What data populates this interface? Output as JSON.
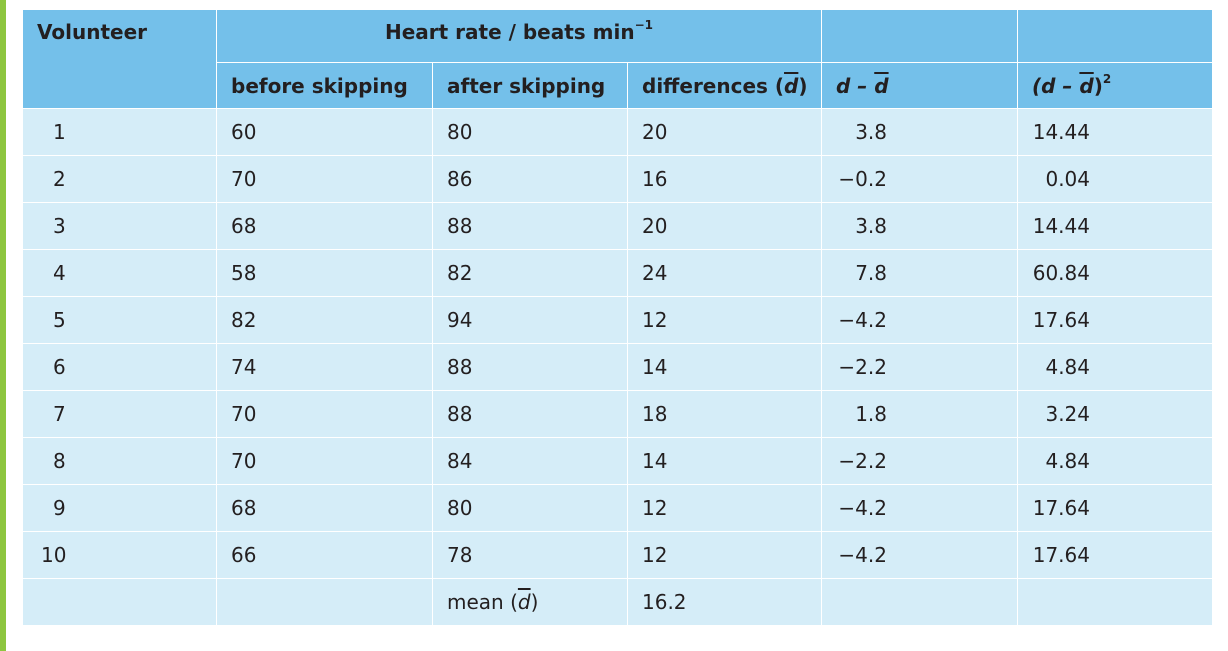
{
  "headers": {
    "volunteer": "Volunteer",
    "heart_rate_group": "Heart rate / beats min",
    "heart_rate_unit_sup": "−1",
    "before": "before skipping",
    "after": "after skipping",
    "differences_prefix": "differences (",
    "differences_symbol": "d",
    "differences_suffix": ")",
    "d_minus_prefix": "d – ",
    "d_minus_symbol": "d",
    "sq_open": "(d – ",
    "sq_symbol": "d",
    "sq_close": ")",
    "sq_exponent": "2"
  },
  "rows": [
    {
      "volunteer": "1",
      "before": "60",
      "after": "80",
      "diff": "20",
      "dev": "3.8",
      "sq": "14.44"
    },
    {
      "volunteer": "2",
      "before": "70",
      "after": "86",
      "diff": "16",
      "dev": "−0.2",
      "sq": "0.04"
    },
    {
      "volunteer": "3",
      "before": "68",
      "after": "88",
      "diff": "20",
      "dev": "3.8",
      "sq": "14.44"
    },
    {
      "volunteer": "4",
      "before": "58",
      "after": "82",
      "diff": "24",
      "dev": "7.8",
      "sq": "60.84"
    },
    {
      "volunteer": "5",
      "before": "82",
      "after": "94",
      "diff": "12",
      "dev": "−4.2",
      "sq": "17.64"
    },
    {
      "volunteer": "6",
      "before": "74",
      "after": "88",
      "diff": "14",
      "dev": "−2.2",
      "sq": "4.84"
    },
    {
      "volunteer": "7",
      "before": "70",
      "after": "88",
      "diff": "18",
      "dev": "1.8",
      "sq": "3.24"
    },
    {
      "volunteer": "8",
      "before": "70",
      "after": "84",
      "diff": "14",
      "dev": "−2.2",
      "sq": "4.84"
    },
    {
      "volunteer": "9",
      "before": "68",
      "after": "80",
      "diff": "12",
      "dev": "−4.2",
      "sq": "17.64"
    },
    {
      "volunteer": "10",
      "before": "66",
      "after": "78",
      "diff": "12",
      "dev": "−4.2",
      "sq": "17.64"
    }
  ],
  "mean_row": {
    "label_prefix": "mean (",
    "label_symbol": "d",
    "label_suffix": ")",
    "value": "16.2"
  },
  "colors": {
    "header_bg": "#74c0ea",
    "body_bg": "#d5edf8",
    "accent": "#8dc63f"
  }
}
